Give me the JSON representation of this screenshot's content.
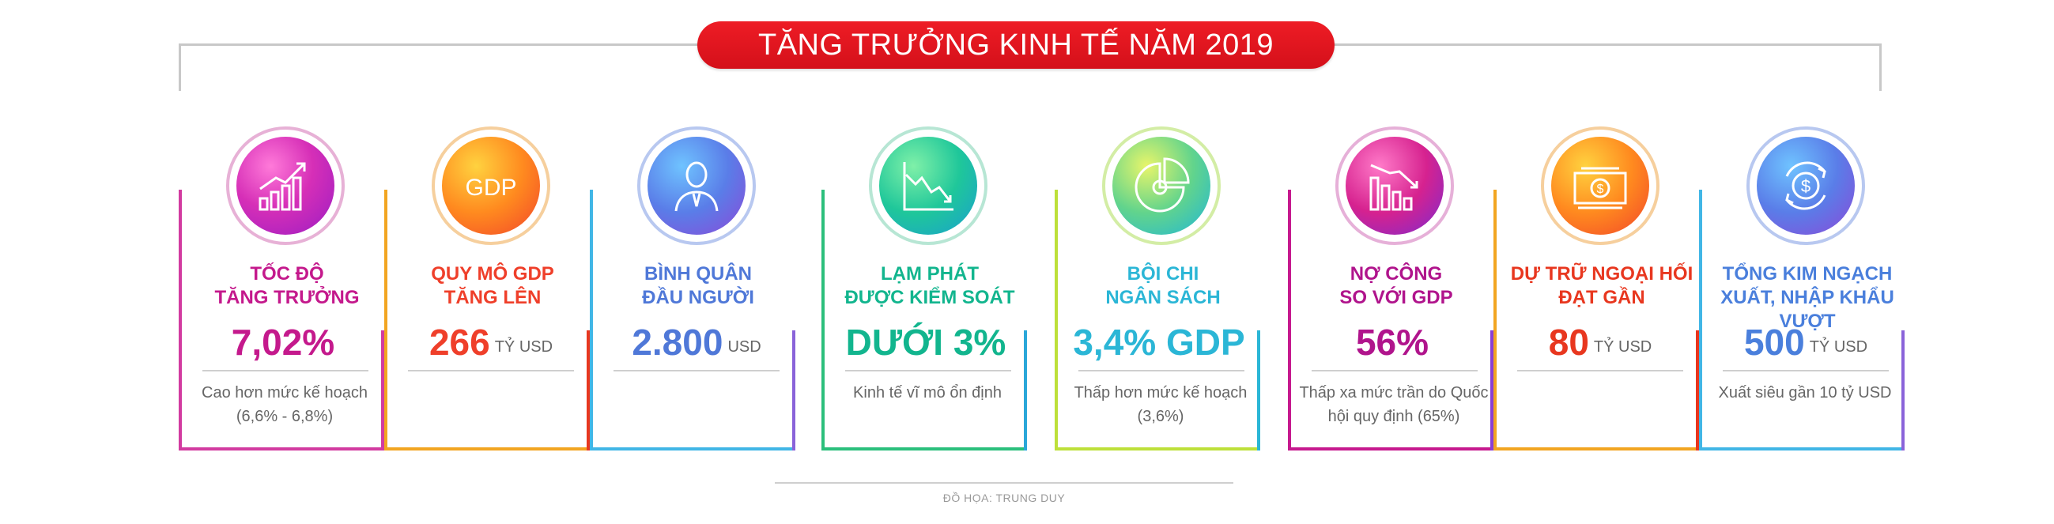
{
  "header": {
    "title": "TĂNG TRƯỞNG KINH TẾ NĂM 2019"
  },
  "cards": [
    {
      "label": "TỐC ĐỘ\nTĂNG TRƯỞNG",
      "value": "7,02%",
      "unit": "",
      "desc": "Cao hơn mức kế hoạch (6,6% - 6,8%)",
      "icon": "growth-chart-icon",
      "color": "#c4198c"
    },
    {
      "label": "QUY MÔ GDP\nTĂNG LÊN",
      "value": "266",
      "unit": "TỶ USD",
      "desc": "",
      "icon": "gdp-icon",
      "color": "#ef3f2a"
    },
    {
      "label": "BÌNH QUÂN\nĐẦU NGƯỜI",
      "value": "2.800",
      "unit": "USD",
      "desc": "",
      "icon": "person-icon",
      "color": "#4f78d8"
    },
    {
      "label": "LẠM PHÁT\nĐƯỢC KIỂM SOÁT",
      "value": "DƯỚI 3%",
      "unit": "",
      "desc": "Kinh tế vĩ mô ổn định",
      "icon": "declining-chart-icon",
      "color": "#12b58e"
    },
    {
      "label": "BỘI CHI\nNGÂN SÁCH",
      "value": "3,4% GDP",
      "unit": "",
      "desc": "Thấp hơn mức kế hoạch (3,6%)",
      "icon": "pie-chart-icon",
      "color": "#2bb6d6"
    },
    {
      "label": "NỢ CÔNG\nSO VỚI GDP",
      "value": "56%",
      "unit": "",
      "desc": "Thấp xa mức trần do Quốc hội quy định (65%)",
      "icon": "debt-bars-icon",
      "color": "#b0148c"
    },
    {
      "label": "DỰ TRỮ NGOẠI HỐI\nĐẠT GẦN",
      "value": "80",
      "unit": "TỶ USD",
      "desc": "",
      "icon": "money-stack-icon",
      "color": "#e8371f"
    },
    {
      "label": "TỔNG KIM NGẠCH\nXUẤT, NHẬP KHẨU VƯỢT",
      "value": "500",
      "unit": "TỶ USD",
      "desc": "Xuất siêu gần 10 tỷ USD",
      "icon": "dollar-exchange-icon",
      "color": "#4a7fdc"
    }
  ],
  "credit": "ĐỒ HỌA: TRUNG DUY"
}
